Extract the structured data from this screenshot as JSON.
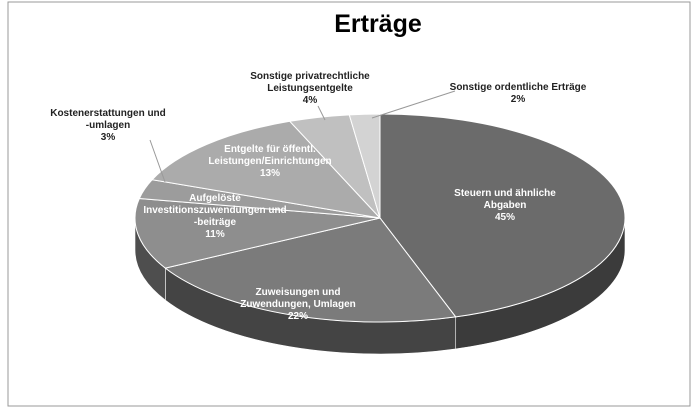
{
  "chart_data": {
    "type": "pie3d",
    "title": "Erträge",
    "categories": [
      "Steuern und ähnliche\nAbgaben",
      "Zuweisungen und\nZuwendungen, Umlagen",
      "Aufgelöste\nInvestitionszuwendungen und\n-beiträge",
      "Kostenerstattungen und\n-umlagen",
      "Entgelte für öffentl.\nLeistungen/Einrichtungen",
      "Sonstige privatrechtliche\nLeistungsentgelte",
      "Sonstige ordentliche Erträge"
    ],
    "values": [
      45,
      22,
      11,
      3,
      13,
      4,
      2
    ],
    "value_labels": [
      "45%",
      "22%",
      "11%",
      "3%",
      "13%",
      "4%",
      "2%"
    ],
    "colors": [
      "#6b6b6b",
      "#7b7b7b",
      "#8e8e8e",
      "#9c9c9c",
      "#ababab",
      "#c0c0c0",
      "#d3d3d3"
    ]
  }
}
